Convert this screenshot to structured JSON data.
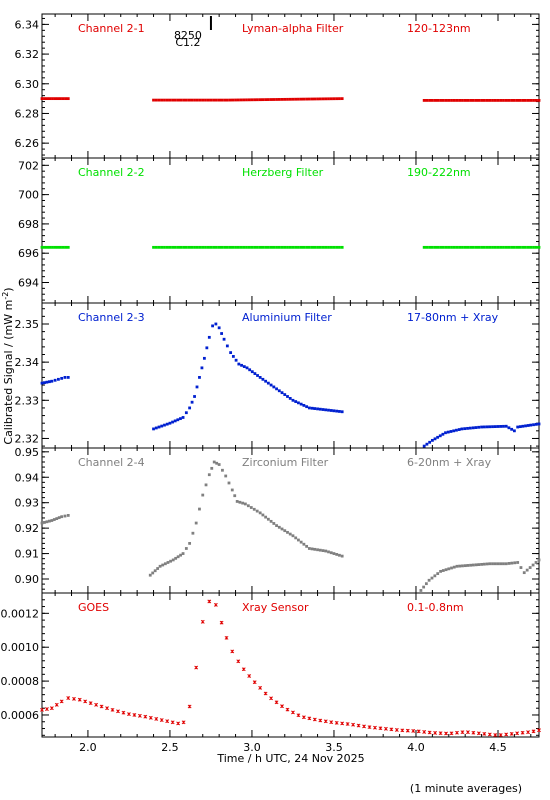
{
  "figure": {
    "ylabel": "Calibrated Signal / (mW m",
    "ylabel_sup": "-2",
    "ylabel_end": ")",
    "xlabel": "Time / h UTC, 24 Nov 2025",
    "footnote": "(1 minute averages)",
    "event_marker": {
      "time": 2.75,
      "label_top": "8250",
      "label_bottom": "C1.2"
    }
  },
  "chart_data": [
    {
      "type": "scatter",
      "channel": "Channel 2-1",
      "filter": "Lyman-alpha Filter",
      "band": "120-123nm",
      "color": "#e00000",
      "xlim": [
        1.72,
        4.75
      ],
      "ylim": [
        6.25,
        6.347
      ],
      "yticks": [
        6.26,
        6.28,
        6.3,
        6.32,
        6.34
      ],
      "ytick_labels": [
        "6.26",
        "6.28",
        "6.30",
        "6.32",
        "6.34"
      ],
      "segments": [
        {
          "x": [
            1.72,
            1.88
          ],
          "y": [
            6.29,
            6.29
          ]
        },
        {
          "x": [
            2.4,
            2.85,
            3.2,
            3.55
          ],
          "y": [
            6.289,
            6.289,
            6.2895,
            6.29
          ]
        },
        {
          "x": [
            4.05,
            4.75
          ],
          "y": [
            6.2888,
            6.2888
          ]
        }
      ]
    },
    {
      "type": "scatter",
      "channel": "Channel 2-2",
      "filter": "Herzberg Filter",
      "band": "190-222nm",
      "color": "#00e000",
      "xlim": [
        1.72,
        4.75
      ],
      "ylim": [
        692.6,
        702.5
      ],
      "yticks": [
        694,
        696,
        698,
        700,
        702
      ],
      "ytick_labels": [
        "694",
        "696",
        "698",
        "700",
        "702"
      ],
      "segments": [
        {
          "x": [
            1.72,
            1.88
          ],
          "y": [
            696.4,
            696.4
          ]
        },
        {
          "x": [
            2.4,
            3.55
          ],
          "y": [
            696.4,
            696.4
          ]
        },
        {
          "x": [
            4.05,
            4.75
          ],
          "y": [
            696.4,
            696.4
          ]
        }
      ]
    },
    {
      "type": "scatter",
      "channel": "Channel 2-3",
      "filter": "Aluminium Filter",
      "band": "17-80nm + Xray",
      "color": "#0020d0",
      "xlim": [
        1.72,
        4.75
      ],
      "ylim": [
        2.3175,
        2.3555
      ],
      "yticks": [
        2.32,
        2.33,
        2.34,
        2.35
      ],
      "ytick_labels": [
        "2.32",
        "2.33",
        "2.34",
        "2.35"
      ],
      "segments": [
        {
          "x": [
            1.72,
            1.78,
            1.82,
            1.86,
            1.88
          ],
          "y": [
            2.3345,
            2.335,
            2.3355,
            2.336,
            2.336
          ]
        },
        {
          "x": [
            2.4,
            2.5,
            2.58,
            2.62,
            2.65,
            2.68,
            2.71,
            2.74,
            2.76,
            2.78,
            2.8,
            2.83,
            2.87,
            2.92,
            2.97,
            3.05,
            3.15,
            3.25,
            3.35,
            3.45,
            3.55
          ],
          "y": [
            2.3225,
            2.324,
            2.3255,
            2.328,
            2.331,
            2.336,
            2.341,
            2.3465,
            2.3495,
            2.35,
            2.349,
            2.346,
            2.3425,
            2.3395,
            2.3385,
            2.336,
            2.333,
            2.33,
            2.328,
            2.3275,
            2.327
          ]
        },
        {
          "x": [
            4.05,
            4.1,
            4.18,
            4.28,
            4.4,
            4.55,
            4.6,
            4.62,
            4.7,
            4.75
          ],
          "y": [
            2.318,
            2.3195,
            2.3215,
            2.3225,
            2.323,
            2.3232,
            2.322,
            2.323,
            2.3235,
            2.3238
          ]
        }
      ]
    },
    {
      "type": "scatter",
      "channel": "Channel 2-4",
      "filter": "Zirconium Filter",
      "band": "6-20nm + Xray",
      "color": "#808080",
      "xlim": [
        1.72,
        4.75
      ],
      "ylim": [
        0.8945,
        0.9515
      ],
      "yticks": [
        0.9,
        0.91,
        0.92,
        0.93,
        0.94,
        0.95
      ],
      "ytick_labels": [
        "0.90",
        "0.91",
        "0.92",
        "0.93",
        "0.94",
        "0.95"
      ],
      "segments": [
        {
          "x": [
            1.72,
            1.78,
            1.84,
            1.88
          ],
          "y": [
            0.922,
            0.923,
            0.9245,
            0.925
          ]
        },
        {
          "x": [
            2.38,
            2.44,
            2.52,
            2.58,
            2.62,
            2.66,
            2.7,
            2.74,
            2.77,
            2.8,
            2.84,
            2.88,
            2.91,
            2.96,
            3.05,
            3.15,
            3.25,
            3.35,
            3.45,
            3.55
          ],
          "y": [
            0.9015,
            0.905,
            0.9075,
            0.91,
            0.914,
            0.922,
            0.933,
            0.941,
            0.946,
            0.945,
            0.9405,
            0.935,
            0.9305,
            0.9295,
            0.926,
            0.921,
            0.917,
            0.912,
            0.911,
            0.909
          ]
        },
        {
          "x": [
            4.03,
            4.08,
            4.15,
            4.25,
            4.35,
            4.45,
            4.55,
            4.62,
            4.66,
            4.75
          ],
          "y": [
            0.8955,
            0.8995,
            0.903,
            0.905,
            0.9055,
            0.906,
            0.906,
            0.9065,
            0.9025,
            0.9075
          ]
        }
      ]
    },
    {
      "type": "scatter",
      "channel": "GOES",
      "filter": "Xray Sensor",
      "band": "0.1-0.8nm",
      "color": "#e00000",
      "xlim": [
        1.72,
        4.75
      ],
      "ylim": [
        0.00047,
        0.00132
      ],
      "yticks": [
        0.0006,
        0.0008,
        0.001,
        0.0012
      ],
      "ytick_labels": [
        "0.0006",
        "0.0008",
        "0.0010",
        "0.0012"
      ],
      "xticks": [
        2.0,
        2.5,
        3.0,
        3.5,
        4.0,
        4.5
      ],
      "xtick_labels": [
        "2.0",
        "2.5",
        "3.0",
        "3.5",
        "4.0",
        "4.5"
      ],
      "segments": [
        {
          "x": [
            1.72,
            1.78,
            1.84,
            1.88,
            1.95,
            2.05,
            2.15,
            2.25,
            2.35,
            2.45,
            2.55,
            2.6,
            2.62,
            2.64,
            2.66,
            2.68,
            2.7,
            2.72,
            2.74,
            2.76,
            2.78,
            2.8,
            2.83,
            2.86,
            2.9,
            2.95,
            3.0,
            3.1,
            3.2,
            3.3,
            3.4,
            3.5,
            3.6,
            3.7,
            3.8,
            3.9,
            4.0,
            4.1,
            4.2,
            4.3,
            4.4,
            4.5,
            4.6,
            4.7,
            4.75
          ],
          "y": [
            0.00063,
            0.00064,
            0.00068,
            0.0007,
            0.00069,
            0.00066,
            0.00063,
            0.000605,
            0.00059,
            0.00057,
            0.00055,
            0.00056,
            0.00065,
            0.00075,
            0.00088,
            0.00103,
            0.00115,
            0.00123,
            0.00127,
            0.00128,
            0.00125,
            0.00119,
            0.0011,
            0.00101,
            0.00094,
            0.00087,
            0.00081,
            0.00071,
            0.00064,
            0.00059,
            0.00057,
            0.000555,
            0.000545,
            0.00053,
            0.00052,
            0.00051,
            0.000505,
            0.000495,
            0.00049,
            0.0005,
            0.00049,
            0.00048,
            0.00049,
            0.0005,
            0.00051
          ]
        }
      ]
    }
  ]
}
